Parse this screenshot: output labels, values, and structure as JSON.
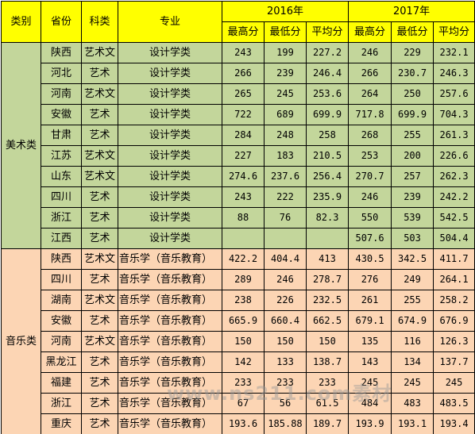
{
  "headers": {
    "category": "类别",
    "province": "省份",
    "subject": "科类",
    "major": "专业",
    "year_2016": "2016年",
    "year_2017": "2017年",
    "max": "最高分",
    "min": "最低分",
    "avg": "平均分"
  },
  "groups": [
    {
      "name": "美术类",
      "rows": [
        {
          "province": "陕西",
          "subject": "艺术文",
          "major": "设计学类",
          "s2016": [
            "243",
            "199",
            "227.2"
          ],
          "s2017": [
            "246",
            "229",
            "232.1"
          ]
        },
        {
          "province": "河北",
          "subject": "艺术",
          "major": "设计学类",
          "s2016": [
            "266",
            "239",
            "246.4"
          ],
          "s2017": [
            "266",
            "230.7",
            "246.3"
          ]
        },
        {
          "province": "河南",
          "subject": "艺术文",
          "major": "设计学类",
          "s2016": [
            "265",
            "245",
            "253.6"
          ],
          "s2017": [
            "264",
            "250",
            "257.6"
          ]
        },
        {
          "province": "安徽",
          "subject": "艺术",
          "major": "设计学类",
          "s2016": [
            "722",
            "689",
            "699.9"
          ],
          "s2017": [
            "717.8",
            "699.9",
            "704.3"
          ]
        },
        {
          "province": "甘肃",
          "subject": "艺术",
          "major": "设计学类",
          "s2016": [
            "284",
            "248",
            "258"
          ],
          "s2017": [
            "268",
            "255",
            "261.3"
          ]
        },
        {
          "province": "江苏",
          "subject": "艺术文",
          "major": "设计学类",
          "s2016": [
            "227",
            "183",
            "210.5"
          ],
          "s2017": [
            "253",
            "200",
            "226.6"
          ]
        },
        {
          "province": "山东",
          "subject": "艺术文",
          "major": "设计学类",
          "s2016": [
            "274.6",
            "237.6",
            "256.4"
          ],
          "s2017": [
            "270.7",
            "257",
            "262.3"
          ]
        },
        {
          "province": "四川",
          "subject": "艺术",
          "major": "设计学类",
          "s2016": [
            "243",
            "222",
            "235.9"
          ],
          "s2017": [
            "246",
            "239",
            "242.2"
          ]
        },
        {
          "province": "浙江",
          "subject": "艺术",
          "major": "设计学类",
          "s2016": [
            "88",
            "76",
            "82.3"
          ],
          "s2017": [
            "550",
            "539",
            "542.5"
          ]
        },
        {
          "province": "江西",
          "subject": "艺术",
          "major": "设计学类",
          "s2016": [
            "",
            "",
            ""
          ],
          "s2017": [
            "507.6",
            "503",
            "504.4"
          ]
        }
      ]
    },
    {
      "name": "音乐类",
      "rows": [
        {
          "province": "陕西",
          "subject": "艺术文",
          "major": "音乐学（音乐教育）",
          "s2016": [
            "422.2",
            "404.4",
            "413"
          ],
          "s2017": [
            "430.5",
            "342.5",
            "411.7"
          ]
        },
        {
          "province": "四川",
          "subject": "艺术",
          "major": "音乐学（音乐教育）",
          "s2016": [
            "289",
            "246",
            "278.7"
          ],
          "s2017": [
            "276",
            "249",
            "264.1"
          ]
        },
        {
          "province": "湖南",
          "subject": "艺术文",
          "major": "音乐学（音乐教育）",
          "s2016": [
            "238",
            "226",
            "232.5"
          ],
          "s2017": [
            "261",
            "255",
            "258.2"
          ]
        },
        {
          "province": "安徽",
          "subject": "艺术",
          "major": "音乐学（音乐教育）",
          "s2016": [
            "665.9",
            "660.4",
            "662.5"
          ],
          "s2017": [
            "679.1",
            "674.9",
            "676.9"
          ]
        },
        {
          "province": "河南",
          "subject": "艺术文",
          "major": "音乐学（音乐教育）",
          "s2016": [
            "150",
            "150",
            "150"
          ],
          "s2017": [
            "135",
            "116",
            "126.3"
          ]
        },
        {
          "province": "黑龙江",
          "subject": "艺术",
          "major": "音乐学（音乐教育）",
          "s2016": [
            "142",
            "133",
            "138.7"
          ],
          "s2017": [
            "143",
            "134",
            "137.7"
          ]
        },
        {
          "province": "福建",
          "subject": "艺术",
          "major": "音乐学（音乐教育）",
          "s2016": [
            "233",
            "233",
            "233"
          ],
          "s2017": [
            "245",
            "245",
            "245"
          ]
        },
        {
          "province": "浙江",
          "subject": "艺术",
          "major": "音乐学（音乐教育）",
          "s2016": [
            "67",
            "56",
            "61.5"
          ],
          "s2017": [
            "484",
            "483",
            "483.5"
          ]
        },
        {
          "province": "重庆",
          "subject": "艺术",
          "major": "音乐学（音乐教育）",
          "s2016": [
            "193.6",
            "185.88",
            "189.7"
          ],
          "s2017": [
            "193.9",
            "193.1",
            "193.4"
          ]
        }
      ]
    }
  ],
  "watermark": "www.ns211.com素材",
  "colors": {
    "header": "#ffff00",
    "art_group": "#c3d69b",
    "music_group": "#fcd5b4"
  }
}
